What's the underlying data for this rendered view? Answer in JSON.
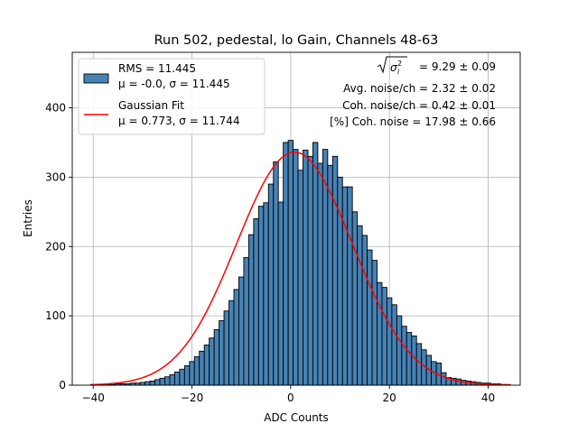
{
  "chart_data": {
    "type": "bar",
    "title": "Run 502, pedestal, lo Gain, Channels 48-63",
    "xlabel": "ADC Counts",
    "ylabel": "Entries",
    "xlim": [
      -44.25,
      46.5
    ],
    "ylim": [
      0,
      480
    ],
    "xticks": [
      -40,
      -20,
      0,
      20,
      40
    ],
    "yticks": [
      0,
      100,
      200,
      300,
      400
    ],
    "xtick_labels": [
      "−40",
      "−20",
      "0",
      "20",
      "40"
    ],
    "ytick_labels": [
      "0",
      "100",
      "200",
      "300",
      "400"
    ],
    "grid": true,
    "bar_color": "#4682b4",
    "fit_color": "#ff0000",
    "bins": {
      "start": -40.5,
      "width": 1
    },
    "values": [
      1,
      1,
      1,
      1,
      1,
      2,
      2,
      2,
      3,
      3,
      4,
      5,
      6,
      8,
      10,
      12,
      15,
      19,
      23,
      28,
      34,
      41,
      49,
      58,
      68,
      80,
      93,
      107,
      122,
      138,
      156,
      184,
      217,
      240,
      258,
      263,
      290,
      322,
      264,
      350,
      353,
      340,
      310,
      339,
      330,
      350,
      320,
      340,
      317,
      330,
      300,
      286,
      286,
      250,
      230,
      216,
      195,
      180,
      148,
      141,
      126,
      116,
      100,
      85,
      76,
      71,
      60,
      51,
      43,
      34,
      32,
      18,
      11,
      10,
      9,
      7,
      6,
      5,
      4,
      3,
      3,
      2,
      2,
      1,
      1
    ],
    "fit": {
      "mu": 0.773,
      "sigma": 11.744,
      "amplitude": 336
    },
    "legend": {
      "position": "upper left",
      "items": [
        {
          "kind": "patch",
          "line1": "RMS = 11.445",
          "line2": "μ = -0.0, σ = 11.445"
        },
        {
          "kind": "line",
          "line1": "Gaussian Fit",
          "line2": "μ = 0.773, σ = 11.744"
        }
      ]
    },
    "annotations": {
      "total_noise": "= 9.29 ± 0.09",
      "avg_noise": "Avg. noise/ch = 2.32 ± 0.02",
      "coh_noise": "Coh. noise/ch = 0.42 ± 0.01",
      "pct_coh_noise": "[%] Coh. noise = 17.98 ± 0.66"
    }
  }
}
